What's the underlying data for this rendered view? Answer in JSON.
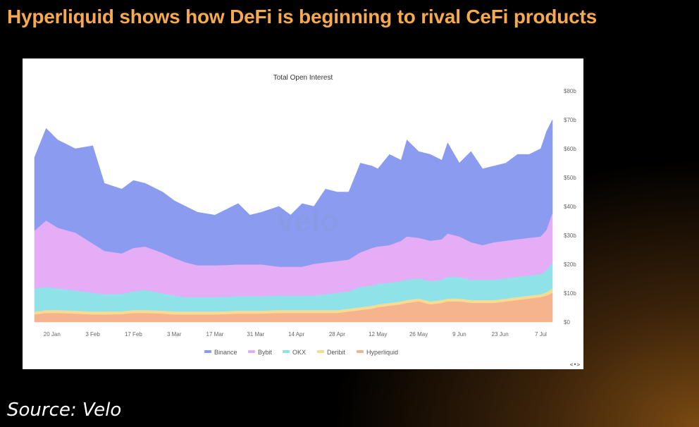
{
  "headline": "Hyperliquid shows how DeFi is beginning to rival CeFi products",
  "source": "Source: Velo",
  "chart_data": {
    "type": "area",
    "stacked": true,
    "title": "Total Open Interest",
    "watermark": "velo",
    "nav_hint": "<•>",
    "x_tick_labels": [
      "20 Jan",
      "3 Feb",
      "17 Feb",
      "3 Mar",
      "17 Mar",
      "31 Mar",
      "14 Apr",
      "28 Apr",
      "12 May",
      "26 May",
      "9 Jun",
      "23 Jun",
      "7 Jul"
    ],
    "x_tick_days": [
      6,
      20,
      34,
      48,
      62,
      76,
      90,
      104,
      118,
      132,
      146,
      160,
      174
    ],
    "y_tick_labels": [
      "$0",
      "$10b",
      "$20b",
      "$30b",
      "$40b",
      "$50b",
      "$60b",
      "$70b",
      "$80b"
    ],
    "ylim": [
      0,
      80
    ],
    "unit": "$b",
    "legend_position": "bottom",
    "colors": {
      "Binance": "#8b9cf0",
      "Bybit": "#e6adf7",
      "OKX": "#8fe3e8",
      "Deribit": "#f6dc93",
      "Hyperliquid": "#f6b48e"
    },
    "series_order_bottom_to_top": [
      "Hyperliquid",
      "Deribit",
      "OKX",
      "Bybit",
      "Binance"
    ],
    "x_days": [
      0,
      4,
      8,
      14,
      20,
      24,
      30,
      34,
      38,
      44,
      48,
      52,
      56,
      62,
      66,
      70,
      74,
      78,
      84,
      88,
      92,
      96,
      100,
      104,
      108,
      112,
      116,
      118,
      122,
      126,
      128,
      132,
      136,
      140,
      142,
      146,
      150,
      154,
      158,
      162,
      166,
      170,
      174,
      176,
      178
    ],
    "totals": [
      57,
      67,
      63,
      60,
      61,
      48,
      46,
      49,
      48,
      45,
      41,
      40,
      38,
      37,
      39,
      41,
      37,
      38,
      40,
      37,
      41,
      40,
      46,
      45,
      45,
      55,
      54,
      53,
      58,
      56,
      63,
      59,
      58,
      56,
      62,
      55,
      59,
      53,
      54,
      55,
      58,
      58,
      60,
      66,
      70
    ],
    "series": [
      {
        "name": "Hyperliquid",
        "values": [
          2.5,
          3,
          3,
          2.8,
          2.5,
          2.5,
          2.6,
          3,
          3,
          2.8,
          2.5,
          2.5,
          2.5,
          2.5,
          2.6,
          2.8,
          2.8,
          2.8,
          3,
          3,
          3,
          3,
          3,
          3,
          3.5,
          4,
          4.5,
          5,
          5.5,
          6,
          6.5,
          7,
          6,
          6.5,
          7,
          7,
          6.5,
          6.5,
          6.5,
          7,
          7.5,
          8,
          8.5,
          9,
          10
        ]
      },
      {
        "name": "Deribit",
        "values": [
          1,
          1,
          1,
          1,
          1,
          1,
          1,
          1,
          1,
          1,
          1,
          1,
          1,
          1,
          1,
          1,
          1,
          1,
          1,
          1,
          1,
          1,
          1,
          1,
          1,
          1,
          1,
          1,
          1,
          1,
          1,
          1,
          1,
          1,
          1,
          1,
          1,
          1,
          1,
          1,
          1,
          1,
          1,
          1.2,
          1.5
        ]
      },
      {
        "name": "OKX",
        "values": [
          8,
          8,
          7.5,
          7,
          6.5,
          6,
          6,
          6.5,
          7,
          6,
          5.5,
          5,
          5,
          5,
          5,
          5,
          5,
          5,
          5,
          5,
          5,
          5,
          5.5,
          6,
          6,
          7,
          7,
          7,
          7,
          7,
          7,
          7,
          7,
          7,
          7.5,
          7.5,
          7,
          7,
          7,
          7,
          7,
          7,
          7,
          7.5,
          9
        ]
      },
      {
        "name": "Bybit",
        "values": [
          20,
          23,
          21,
          20,
          17,
          15,
          14,
          15,
          15,
          14,
          13,
          12,
          11,
          11,
          11,
          11,
          11,
          11,
          10,
          10,
          10,
          11,
          11,
          11,
          11,
          12,
          13,
          13,
          13,
          14,
          15,
          14,
          14,
          14,
          15,
          14,
          13,
          12,
          13,
          13,
          13,
          13,
          13,
          14,
          17
        ]
      },
      {
        "name": "Binance",
        "values": [
          25.5,
          32,
          30.5,
          29.2,
          34,
          23.5,
          22.4,
          23.5,
          22,
          21.2,
          20,
          19.5,
          18.5,
          17.5,
          19.4,
          21.2,
          17.2,
          18.2,
          21,
          18,
          22,
          20,
          25.5,
          24,
          23.5,
          31,
          28.5,
          27,
          31.5,
          28,
          33.5,
          30,
          30,
          27.5,
          31.5,
          25.5,
          31.5,
          26.5,
          26.5,
          27,
          29.5,
          29,
          30.5,
          34.3,
          32.5
        ]
      }
    ]
  }
}
